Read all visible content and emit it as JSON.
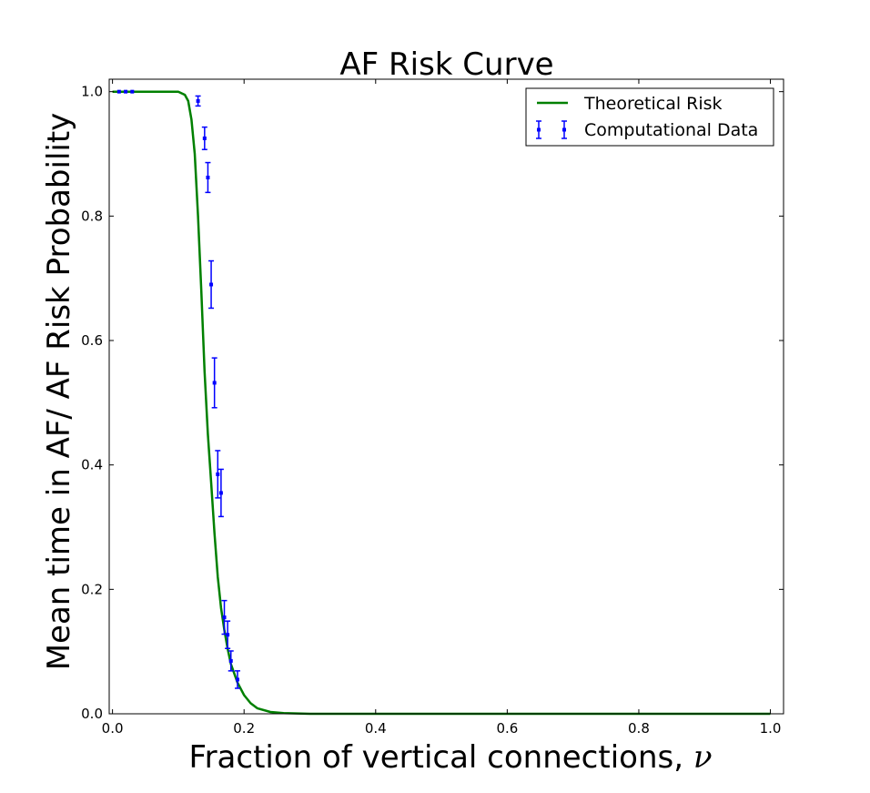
{
  "chart_data": {
    "type": "line",
    "title": "AF Risk Curve",
    "xlabel": "Fraction of vertical connections, ",
    "xlabel_symbol": "ν",
    "ylabel": "Mean time in AF/ AF Risk Probability",
    "xlim": [
      -0.005,
      1.02
    ],
    "ylim": [
      0.0,
      1.02
    ],
    "xticks": [
      "0.0",
      "0.2",
      "0.4",
      "0.6",
      "0.8",
      "1.0"
    ],
    "yticks": [
      "0.0",
      "0.2",
      "0.4",
      "0.6",
      "0.8",
      "1.0"
    ],
    "grid": false,
    "legend_position": "top-right",
    "series": [
      {
        "name": "Theoretical Risk",
        "kind": "line",
        "color": "#008000",
        "x": [
          0.0,
          0.05,
          0.1,
          0.11,
          0.115,
          0.12,
          0.125,
          0.13,
          0.135,
          0.14,
          0.145,
          0.15,
          0.155,
          0.16,
          0.165,
          0.17,
          0.175,
          0.18,
          0.19,
          0.2,
          0.21,
          0.22,
          0.24,
          0.26,
          0.3,
          0.4,
          0.6,
          0.8,
          1.0
        ],
        "y": [
          1.0,
          1.0,
          1.0,
          0.995,
          0.985,
          0.955,
          0.9,
          0.8,
          0.68,
          0.55,
          0.45,
          0.37,
          0.29,
          0.22,
          0.17,
          0.135,
          0.105,
          0.08,
          0.05,
          0.03,
          0.017,
          0.009,
          0.003,
          0.001,
          0.0,
          0.0,
          0.0,
          0.0,
          0.0
        ]
      },
      {
        "name": "Computational Data",
        "kind": "errorbar",
        "color": "#0000ff",
        "x": [
          0.01,
          0.02,
          0.03,
          0.13,
          0.14,
          0.145,
          0.15,
          0.155,
          0.16,
          0.165,
          0.17,
          0.175,
          0.18,
          0.19
        ],
        "y": [
          1.0,
          1.0,
          1.0,
          0.985,
          0.925,
          0.862,
          0.69,
          0.532,
          0.385,
          0.355,
          0.155,
          0.127,
          0.085,
          0.055
        ],
        "yerr": [
          0.0,
          0.0,
          0.0,
          0.008,
          0.018,
          0.024,
          0.038,
          0.04,
          0.038,
          0.038,
          0.027,
          0.022,
          0.016,
          0.014
        ]
      }
    ]
  }
}
